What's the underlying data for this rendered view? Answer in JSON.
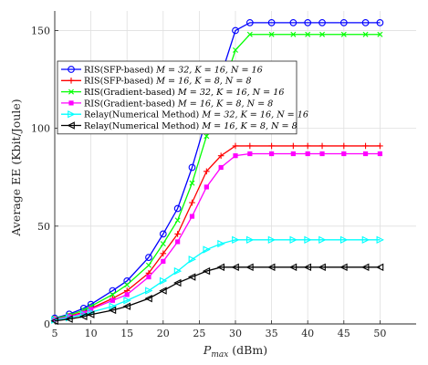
{
  "chart_data": {
    "type": "line",
    "xlabel_base": "P",
    "xlabel_sub": "max",
    "xlabel_unit": " (dBm)",
    "ylabel": "Average EE (Kbit/Joule)",
    "xlim": [
      5,
      55
    ],
    "ylim": [
      0,
      160
    ],
    "xticks": [
      5,
      10,
      15,
      20,
      25,
      30,
      35,
      40,
      45,
      50
    ],
    "yticks": [
      0,
      50,
      100,
      150
    ],
    "grid": true,
    "legend_position": "top-left",
    "x": [
      5,
      7,
      9,
      10,
      13,
      15,
      18,
      20,
      22,
      24,
      26,
      28,
      30,
      32,
      35,
      38,
      40,
      42,
      45,
      48,
      50
    ],
    "series": [
      {
        "name": "RIS(SFP-based) M = 32, K = 16, N = 16",
        "label_text": "RIS(SFP-based) ",
        "label_math": "M = 32, K = 16, N = 16",
        "color": "#0000ff",
        "marker": "circle",
        "values": [
          3,
          5,
          8,
          10,
          17,
          22,
          34,
          46,
          59,
          80,
          105,
          127,
          150,
          154,
          154,
          154,
          154,
          154,
          154,
          154,
          154
        ]
      },
      {
        "name": "RIS(SFP-based) M = 16, K = 8, N = 8",
        "label_text": "RIS(SFP-based) ",
        "label_math": "M = 16, K = 8, N = 8",
        "color": "#ff0000",
        "marker": "plus",
        "values": [
          2.5,
          4,
          6,
          8,
          13,
          17,
          26,
          36,
          46,
          62,
          78,
          86,
          91,
          91,
          91,
          91,
          91,
          91,
          91,
          91,
          91
        ]
      },
      {
        "name": "RIS(Gradient-based) M = 32, K = 16, N = 16",
        "label_text": "RIS(Gradient-based) ",
        "label_math": "M = 32, K = 16, N = 16",
        "color": "#00ff00",
        "marker": "cross",
        "values": [
          2.8,
          4.5,
          7,
          9,
          15,
          20,
          30,
          41,
          53,
          72,
          96,
          118,
          140,
          148,
          148,
          148,
          148,
          148,
          148,
          148,
          148
        ]
      },
      {
        "name": "RIS(Gradient-based) M = 16, K = 8, N = 8",
        "label_text": "RIS(Gradient-based) ",
        "label_math": "M = 16, K = 8, N = 8",
        "color": "#ff00ff",
        "marker": "square",
        "values": [
          2.3,
          3.8,
          5.5,
          7.5,
          12,
          15,
          24,
          32,
          42,
          55,
          70,
          80,
          86,
          87,
          87,
          87,
          87,
          87,
          87,
          87,
          87
        ]
      },
      {
        "name": "Relay(Numerical Method) M = 32, K = 16, N = 16",
        "label_text": "Relay(Numerical Method) ",
        "label_math": "M = 32, K = 16, N = 16",
        "color": "#00ffff",
        "marker": "triangle-right",
        "values": [
          2,
          3.2,
          4.8,
          6,
          9,
          12,
          17,
          22,
          27,
          33,
          38,
          41,
          43,
          43,
          43,
          43,
          43,
          43,
          43,
          43,
          43
        ]
      },
      {
        "name": "Relay(Numerical Method) M = 16, K = 8, N = 8",
        "label_text": "Relay(Numerical Method) ",
        "label_math": "M = 16, K = 8, N = 8",
        "color": "#000000",
        "marker": "triangle-left",
        "values": [
          1.5,
          2.5,
          3.8,
          4.8,
          7,
          9,
          13,
          17,
          21,
          24,
          27,
          29,
          29,
          29,
          29,
          29,
          29,
          29,
          29,
          29,
          29
        ]
      }
    ]
  }
}
